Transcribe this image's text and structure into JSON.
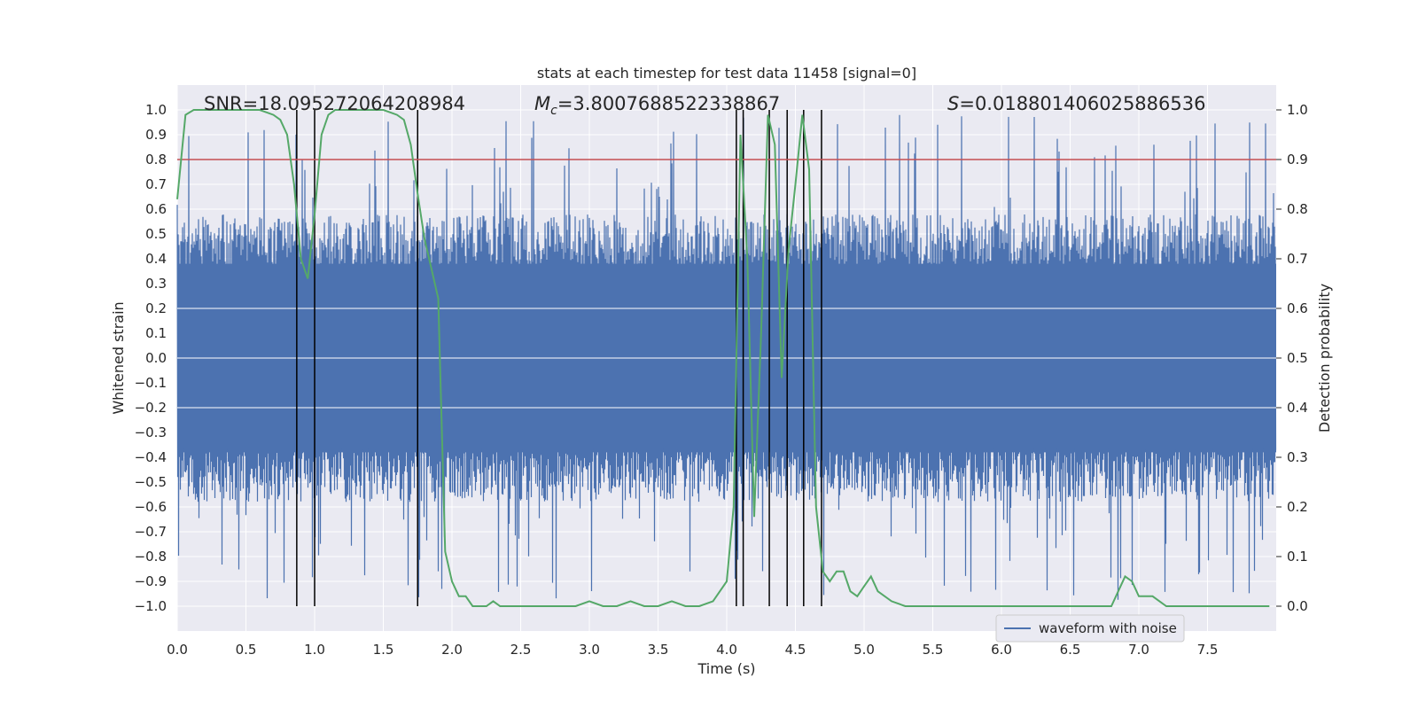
{
  "chart_data": {
    "type": "line",
    "title": "stats at each timestep for test data 11458 [signal=0]",
    "xlabel": "Time (s)",
    "ylabel": "Whitened strain",
    "y2label": "Detection probability",
    "xlim": [
      0.0,
      8.0
    ],
    "ylim": [
      -1.1,
      1.1
    ],
    "y2lim": [
      -0.05,
      1.05
    ],
    "x_ticks": [
      "0.0",
      "0.5",
      "1.0",
      "1.5",
      "2.0",
      "2.5",
      "3.0",
      "3.5",
      "4.0",
      "4.5",
      "5.0",
      "5.5",
      "6.0",
      "6.5",
      "7.0",
      "7.5"
    ],
    "y_ticks": [
      "1.0",
      "0.9",
      "0.8",
      "0.7",
      "0.6",
      "0.5",
      "0.4",
      "0.3",
      "0.2",
      "0.1",
      "0.0",
      "-0.1",
      "-0.2",
      "-0.3",
      "-0.4",
      "-0.5",
      "-0.6",
      "-0.7",
      "-0.8",
      "-0.9",
      "-1.0"
    ],
    "y2_ticks": [
      "1.0",
      "0.9",
      "0.8",
      "0.7",
      "0.6",
      "0.5",
      "0.4",
      "0.3",
      "0.2",
      "0.1",
      "0.0"
    ],
    "annotations": {
      "snr": "SNR=18.095272064208984",
      "mc_symbol": "M",
      "mc_sub": "c",
      "mc_value": "=3.8007688522338867",
      "s_symbol": "S",
      "s_value": "=0.018801406025886536"
    },
    "threshold_y2": 0.9,
    "threshold_color": "#c44e52",
    "event_lines_x": [
      0.87,
      1.0,
      1.75,
      4.07,
      4.12,
      4.31,
      4.44,
      4.56,
      4.69
    ],
    "series": [
      {
        "name": "waveform with noise",
        "color": "#4c72b0",
        "style": "dense noise filling roughly -0.45 to 0.45 with spikes up to ±1.0"
      },
      {
        "name": "detection probability",
        "color": "#55a868",
        "x": [
          0.0,
          0.06,
          0.12,
          0.2,
          0.3,
          0.4,
          0.5,
          0.6,
          0.7,
          0.75,
          0.8,
          0.85,
          0.9,
          0.95,
          1.0,
          1.05,
          1.1,
          1.15,
          1.2,
          1.3,
          1.4,
          1.5,
          1.6,
          1.65,
          1.7,
          1.75,
          1.8,
          1.85,
          1.9,
          1.95,
          2.0,
          2.05,
          2.1,
          2.15,
          2.2,
          2.25,
          2.3,
          2.35,
          2.4,
          2.5,
          2.6,
          2.7,
          2.8,
          2.9,
          3.0,
          3.1,
          3.2,
          3.3,
          3.4,
          3.5,
          3.6,
          3.7,
          3.8,
          3.9,
          4.0,
          4.05,
          4.1,
          4.15,
          4.2,
          4.25,
          4.3,
          4.35,
          4.4,
          4.45,
          4.5,
          4.55,
          4.6,
          4.65,
          4.7,
          4.75,
          4.8,
          4.85,
          4.9,
          4.95,
          5.0,
          5.05,
          5.1,
          5.2,
          5.3,
          5.4,
          5.5,
          5.6,
          5.8,
          6.0,
          6.2,
          6.4,
          6.6,
          6.8,
          6.9,
          6.95,
          7.0,
          7.05,
          7.1,
          7.2,
          7.3,
          7.4,
          7.5,
          7.6,
          7.7,
          7.8,
          7.95
        ],
        "values": [
          0.82,
          0.99,
          1.0,
          1.0,
          1.0,
          1.0,
          1.0,
          1.0,
          0.99,
          0.98,
          0.95,
          0.85,
          0.7,
          0.66,
          0.79,
          0.95,
          0.99,
          1.0,
          1.0,
          1.0,
          1.0,
          1.0,
          0.99,
          0.98,
          0.93,
          0.83,
          0.74,
          0.68,
          0.62,
          0.11,
          0.05,
          0.02,
          0.02,
          0.0,
          0.0,
          0.0,
          0.01,
          0.0,
          0.0,
          0.0,
          0.0,
          0.0,
          0.0,
          0.0,
          0.01,
          0.0,
          0.0,
          0.01,
          0.0,
          0.0,
          0.01,
          0.0,
          0.0,
          0.01,
          0.05,
          0.2,
          0.95,
          0.7,
          0.18,
          0.55,
          0.99,
          0.93,
          0.46,
          0.72,
          0.85,
          0.99,
          0.88,
          0.2,
          0.07,
          0.05,
          0.07,
          0.07,
          0.03,
          0.02,
          0.04,
          0.06,
          0.03,
          0.01,
          0.0,
          0.0,
          0.0,
          0.0,
          0.0,
          0.0,
          0.0,
          0.0,
          0.0,
          0.0,
          0.06,
          0.05,
          0.02,
          0.02,
          0.02,
          0.0,
          0.0,
          0.0,
          0.0,
          0.0,
          0.0,
          0.0,
          0.0
        ]
      }
    ],
    "legend": {
      "label": "waveform with noise",
      "position": "lower-right"
    }
  }
}
